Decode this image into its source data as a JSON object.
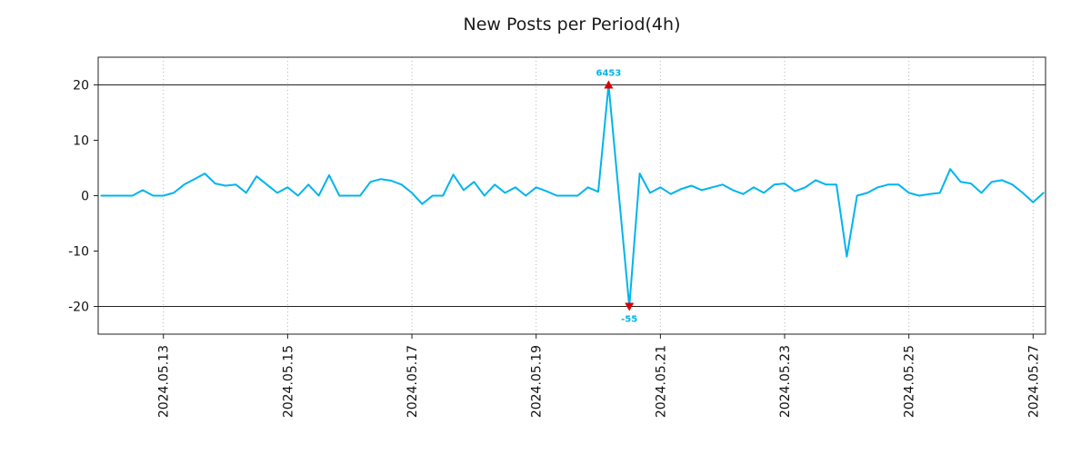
{
  "chart_data": {
    "type": "line",
    "title": "New Posts per Period(4h)",
    "line_color": "#00b4ee",
    "annotation_color": "#00b4ee",
    "marker_color": "#dd0000",
    "grid_color": "#b5b5b5",
    "axis_color": "#222222",
    "x_start": "2024-05-12 00:00",
    "x_step_hours": 4,
    "xlim_days": [
      -0.05,
      15.2
    ],
    "ylim": [
      -25,
      25
    ],
    "y_ticks": [
      -20,
      -10,
      0,
      10,
      20
    ],
    "x_ticks": [
      {
        "day": 1,
        "label": "2024.05.13"
      },
      {
        "day": 3,
        "label": "2024.05.15"
      },
      {
        "day": 5,
        "label": "2024.05.17"
      },
      {
        "day": 7,
        "label": "2024.05.19"
      },
      {
        "day": 9,
        "label": "2024.05.21"
      },
      {
        "day": 11,
        "label": "2024.05.23"
      },
      {
        "day": 13,
        "label": "2024.05.25"
      },
      {
        "day": 15,
        "label": "2024.05.27"
      }
    ],
    "hlines": [
      20,
      -20
    ],
    "grid": "vertical-dotted",
    "values": [
      0,
      0,
      0,
      0,
      1,
      0,
      0,
      0.5,
      2,
      3,
      4,
      2.2,
      1.8,
      2,
      0.5,
      3.5,
      2,
      0.5,
      1.5,
      0,
      2,
      0,
      3.7,
      0,
      0,
      0,
      2.5,
      3,
      2.7,
      2,
      0.5,
      -1.5,
      0,
      0,
      3.8,
      1,
      2.5,
      0,
      2,
      0.5,
      1.5,
      0,
      1.5,
      0.8,
      0,
      0,
      0,
      1.5,
      0.7,
      20,
      0,
      -20,
      4,
      0.5,
      1.5,
      0.3,
      1.2,
      1.8,
      1,
      1.5,
      2,
      1,
      0.3,
      1.5,
      0.5,
      2,
      2.2,
      0.8,
      1.5,
      2.8,
      2,
      2,
      -11,
      0,
      0.5,
      1.5,
      2,
      2,
      0.5,
      0,
      0.3,
      0.5,
      4.8,
      2.5,
      2.2,
      0.5,
      2.5,
      2.8,
      2,
      0.5,
      -1.2,
      0.5
    ],
    "annotations": [
      {
        "text": "6453",
        "day": 8.1667,
        "value": 20,
        "marker": "triangle-up",
        "placement": "above"
      },
      {
        "text": "-55",
        "day": 8.5,
        "value": -20,
        "marker": "triangle-down",
        "placement": "below"
      }
    ]
  }
}
